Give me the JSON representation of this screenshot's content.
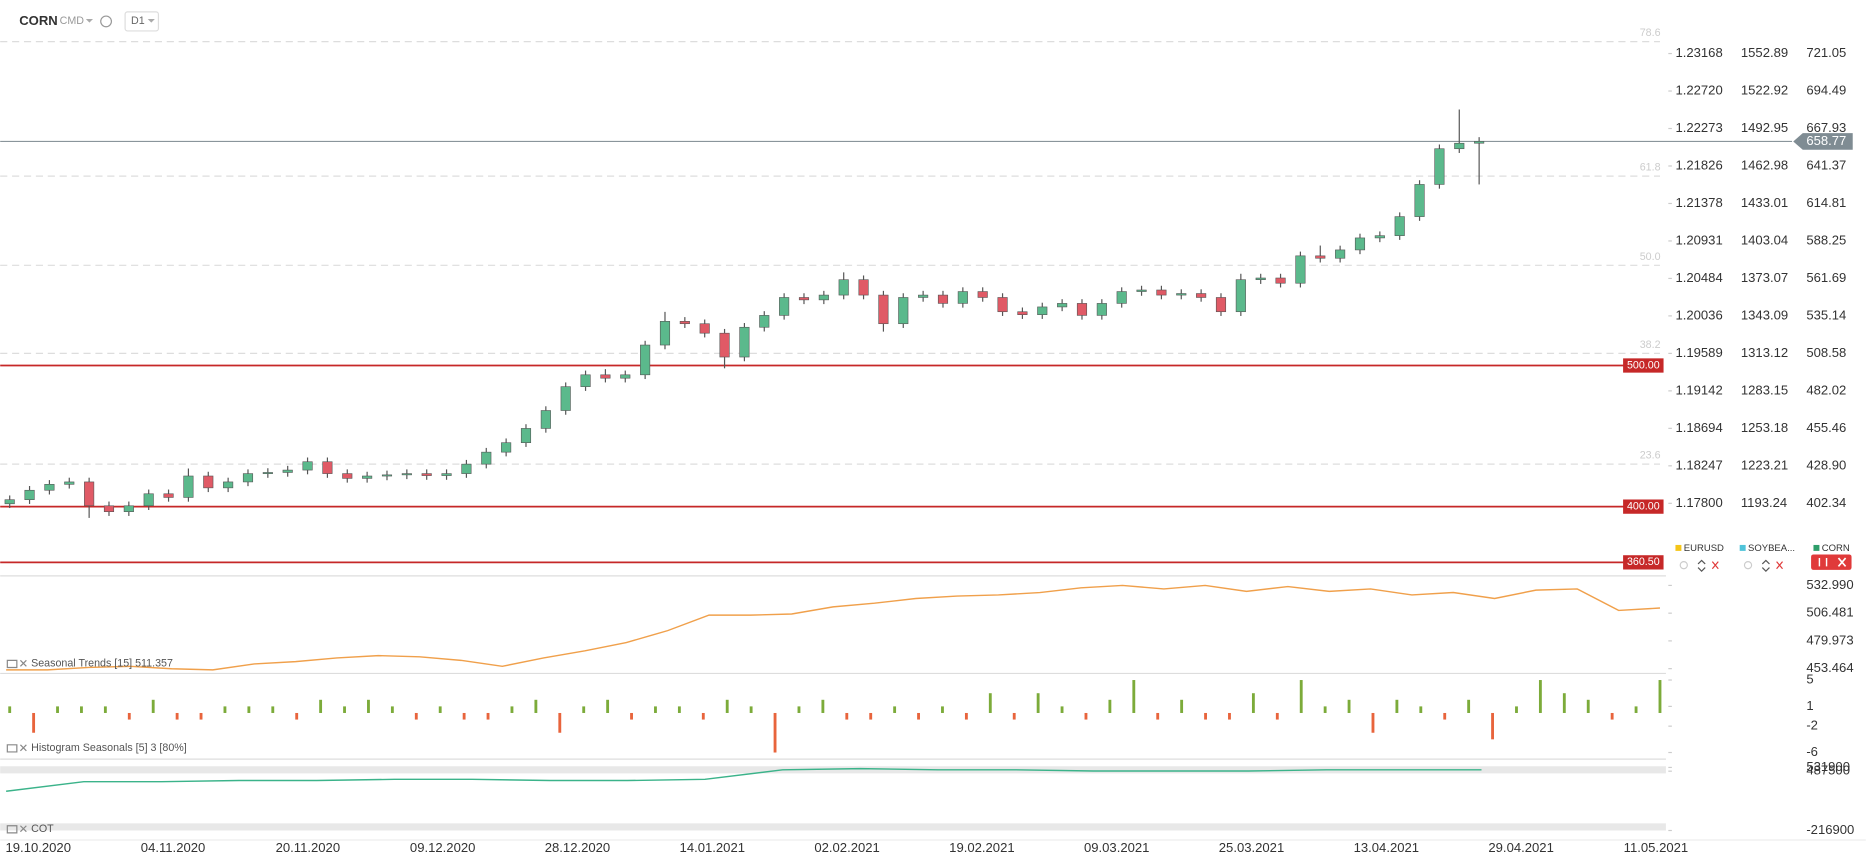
{
  "header": {
    "symbol": "CORN",
    "market": "CMD",
    "timeframe": "D1"
  },
  "legend": [
    {
      "name": "EURUSD",
      "color": "#f5c518"
    },
    {
      "name": "SOYBEA...",
      "color": "#4fc3d9"
    },
    {
      "name": "CORN",
      "color": "#2e9e6a"
    }
  ],
  "x_labels": [
    "19.10.2020",
    "04.11.2020",
    "20.11.2020",
    "09.12.2020",
    "28.12.2020",
    "14.01.2021",
    "02.02.2021",
    "19.02.2021",
    "09.03.2021",
    "25.03.2021",
    "13.04.2021",
    "29.04.2021",
    "11.05.2021"
  ],
  "chart_data": [
    {
      "type": "candlestick",
      "color_up": "#5bb98c",
      "color_down": "#e05a66",
      "open": [
        402.0,
        404.9,
        411.6,
        415.8,
        417.5,
        400.6,
        396.4,
        400.6,
        409.1,
        406.5,
        421.7,
        413.3,
        417.5,
        423.4,
        424.2,
        425.9,
        431.8,
        423.4,
        420.0,
        421.7,
        422.5,
        423.4,
        422.0,
        423.4,
        430.1,
        438.6,
        445.3,
        455.4,
        468.1,
        485.0,
        493.4,
        491.0,
        493.4,
        514.5,
        531.3,
        529.6,
        522.9,
        506.0,
        527.1,
        535.5,
        548.2,
        546.5,
        549.9,
        560.8,
        549.9,
        529.6,
        548.2,
        549.9,
        544.0,
        552.4,
        548.2,
        538.1,
        536.0,
        541.5,
        544.0,
        535.5,
        544.0,
        552.4,
        553.5,
        549.9,
        551.0,
        548.2,
        538.1,
        560.8,
        562.0,
        558.3,
        577.7,
        576.0,
        581.9,
        590.4,
        592.0,
        605.5,
        628.3,
        653.6,
        657.5
      ],
      "high": [
        407.9,
        414.6,
        418.8,
        420.5,
        420.5,
        403.6,
        403.6,
        412.1,
        412.1,
        427.0,
        424.7,
        420.5,
        426.4,
        427.2,
        428.9,
        434.8,
        434.8,
        426.4,
        424.7,
        425.5,
        426.4,
        426.4,
        426.4,
        433.1,
        441.6,
        448.3,
        458.4,
        471.1,
        488.0,
        496.4,
        497.4,
        496.4,
        517.5,
        538.0,
        534.3,
        532.6,
        525.9,
        530.1,
        538.5,
        551.2,
        551.2,
        552.9,
        566.0,
        563.8,
        552.9,
        551.2,
        552.9,
        552.9,
        555.4,
        555.4,
        551.2,
        541.1,
        544.5,
        547.0,
        547.0,
        547.0,
        555.4,
        556.5,
        556.5,
        554.0,
        554.0,
        551.2,
        565.0,
        565.0,
        565.0,
        580.7,
        585.0,
        584.9,
        593.4,
        595.0,
        608.5,
        631.3,
        656.6,
        681.4,
        661.8
      ],
      "low": [
        399.0,
        401.9,
        408.6,
        412.8,
        392.0,
        393.4,
        393.4,
        397.6,
        403.5,
        403.5,
        410.3,
        410.3,
        414.5,
        420.4,
        421.2,
        422.9,
        420.4,
        417.0,
        417.0,
        418.7,
        419.5,
        419.0,
        419.0,
        420.4,
        427.1,
        435.6,
        442.3,
        452.4,
        465.1,
        482.0,
        488.0,
        488.0,
        490.4,
        511.5,
        526.6,
        519.9,
        498.0,
        503.0,
        524.1,
        532.5,
        543.5,
        543.5,
        546.9,
        546.9,
        524.0,
        526.6,
        545.2,
        541.0,
        541.0,
        545.2,
        535.1,
        533.0,
        533.0,
        538.5,
        532.5,
        532.5,
        541.0,
        549.4,
        546.9,
        546.9,
        545.2,
        535.1,
        535.1,
        557.8,
        555.3,
        555.3,
        573.0,
        573.0,
        578.9,
        587.4,
        589.0,
        602.5,
        625.3,
        650.6,
        628.3
      ],
      "close": [
        404.9,
        411.6,
        415.8,
        417.5,
        400.6,
        396.4,
        400.6,
        409.1,
        406.5,
        421.7,
        413.3,
        417.5,
        423.4,
        424.2,
        425.9,
        431.8,
        423.4,
        420.0,
        421.7,
        422.5,
        423.4,
        422.0,
        423.4,
        430.1,
        438.6,
        445.3,
        455.4,
        468.1,
        485.0,
        493.4,
        491.0,
        493.4,
        514.5,
        531.3,
        529.6,
        522.9,
        506.0,
        527.1,
        535.5,
        548.2,
        546.5,
        549.9,
        560.8,
        549.9,
        529.6,
        548.2,
        549.9,
        544.0,
        552.4,
        548.2,
        538.1,
        536.0,
        541.5,
        544.0,
        535.5,
        544.0,
        552.4,
        553.5,
        549.9,
        551.0,
        548.2,
        538.1,
        560.8,
        562.0,
        558.3,
        577.7,
        576.0,
        581.9,
        590.4,
        592.0,
        605.5,
        628.3,
        653.6,
        657.5,
        658.8
      ],
      "ylim": [
        354.3,
        733.7
      ],
      "yticks": [
        721.05,
        694.49,
        667.93,
        641.37,
        614.81,
        588.25,
        561.69,
        535.14,
        508.58,
        482.02,
        455.46,
        {
          "value": 428.9,
          "label": "428.90"
        },
        402.34
      ],
      "eurusd_labels": [
        "1.23168",
        "1.22720",
        "1.22273",
        "1.21826",
        "1.21378",
        "1.20931",
        "1.20484",
        "1.20036",
        "1.19589",
        "1.19142",
        "1.18694",
        "1.18247",
        "1.17800"
      ],
      "soybean_labels": [
        "1552.89",
        "1522.92",
        "1492.95",
        "1462.98",
        "1433.01",
        "1403.04",
        "1373.07",
        "1343.09",
        "1313.12",
        "1283.15",
        "1253.18",
        "1223.21",
        "1193.24"
      ],
      "levels": [
        {
          "value": 500,
          "label": "500.00"
        },
        {
          "value": 400,
          "label": "400.00"
        },
        {
          "value": 360.5,
          "label": "360.50"
        }
      ],
      "level_color": "#c62828",
      "fib": [
        {
          "value": 729.5,
          "label": "78.6"
        },
        {
          "value": 634.2,
          "label": "61.8"
        },
        {
          "value": 571.0,
          "label": "50.0"
        },
        {
          "value": 508.6,
          "label": "38.2"
        },
        {
          "value": 430.1,
          "label": "23.6"
        }
      ],
      "last_price": {
        "value": 658.77,
        "label": "658.77"
      }
    },
    {
      "type": "line",
      "title": "Seasonal  Trends  [15]  511.357",
      "color": "#f0a04b",
      "values": [
        452.3,
        452.3,
        454.6,
        455.7,
        453.4,
        452.3,
        458.0,
        460.2,
        463.7,
        465.9,
        464.8,
        461.4,
        455.7,
        463.7,
        470.5,
        478.4,
        489.8,
        504.6,
        504.6,
        505.7,
        512.5,
        516.0,
        520.5,
        522.8,
        523.9,
        526.2,
        530.7,
        533.0,
        529.6,
        533.0,
        527.3,
        531.9,
        527.3,
        529.6,
        523.9,
        526.2,
        520.5,
        528.5,
        529.6,
        509.1,
        511.4
      ],
      "ylim": [
        448.9,
        538.7
      ],
      "yticks": [
        {
          "value": 532.99,
          "label": "532.990"
        },
        506.481,
        479.973,
        453.464
      ]
    },
    {
      "type": "histogram",
      "title": "Histogram  Seasonals  [5] 3 [80%]",
      "color_up": "#7cab3a",
      "color_down": "#e8643c",
      "values": [
        1,
        -3,
        1,
        1,
        1,
        -1,
        2,
        -1,
        -1,
        1,
        1,
        1,
        -1,
        2,
        1,
        2,
        1,
        -1,
        1,
        -1,
        -1,
        1,
        2,
        -3,
        1,
        2,
        -1,
        1,
        1,
        -1,
        2,
        1,
        -6,
        1,
        2,
        -1,
        -1,
        1,
        -1,
        1,
        -1,
        3,
        -1,
        3,
        1,
        -1,
        2,
        5,
        -1,
        2,
        -1,
        -1,
        3,
        -1,
        5,
        1,
        2,
        -3,
        2,
        1,
        -1,
        2,
        -4,
        1,
        5,
        3,
        2,
        -1,
        1,
        5
      ],
      "ylim": [
        -7,
        6
      ],
      "yticks": [
        5,
        1,
        -2,
        -6
      ]
    },
    {
      "type": "line",
      "title": "COT",
      "color": "#3bb38a",
      "values": [
        249340,
        362360,
        362360,
        376500,
        376500,
        390620,
        390620,
        376500,
        376500,
        390620,
        503640,
        517770,
        503640,
        503640,
        489520,
        489520,
        489520,
        503640,
        503640,
        503640
      ],
      "ylim": [
        -315800,
        602540
      ],
      "yticks": [
        531900,
        487500,
        -216900
      ]
    }
  ]
}
